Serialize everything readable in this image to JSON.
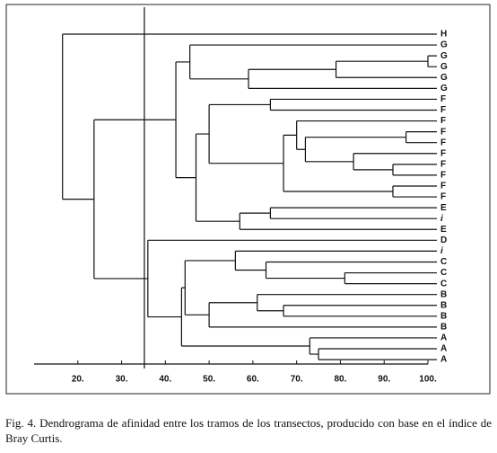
{
  "chart_data": {
    "type": "dendrogram",
    "leaves": [
      "H",
      "G",
      "G",
      "G",
      "G",
      "G",
      "F",
      "F",
      "F",
      "F",
      "F",
      "F",
      "F",
      "F",
      "F",
      "F",
      "E",
      "i",
      "E",
      "D",
      "i",
      "C",
      "C",
      "C",
      "B",
      "B",
      "B",
      "B",
      "A",
      "A",
      "A"
    ],
    "merges": [
      {
        "children": [
          2,
          3
        ],
        "height": 100
      },
      {
        "children": [
          31,
          4
        ],
        "height": 79
      },
      {
        "children": [
          32,
          5
        ],
        "height": 59
      },
      {
        "children": [
          1,
          33
        ],
        "height": 45.6
      },
      {
        "children": [
          6,
          7
        ],
        "height": 64
      },
      {
        "children": [
          9,
          10
        ],
        "height": 95
      },
      {
        "children": [
          12,
          13
        ],
        "height": 92
      },
      {
        "children": [
          11,
          37
        ],
        "height": 83
      },
      {
        "children": [
          36,
          38
        ],
        "height": 72
      },
      {
        "children": [
          8,
          39
        ],
        "height": 70
      },
      {
        "children": [
          14,
          15
        ],
        "height": 92
      },
      {
        "children": [
          40,
          41
        ],
        "height": 67
      },
      {
        "children": [
          35,
          42
        ],
        "height": 50
      },
      {
        "children": [
          16,
          17
        ],
        "height": 64
      },
      {
        "children": [
          44,
          18
        ],
        "height": 57
      },
      {
        "children": [
          43,
          45
        ],
        "height": 47
      },
      {
        "children": [
          34,
          46
        ],
        "height": 42.4
      },
      {
        "children": [
          22,
          23
        ],
        "height": 81
      },
      {
        "children": [
          21,
          48
        ],
        "height": 63
      },
      {
        "children": [
          20,
          49
        ],
        "height": 56
      },
      {
        "children": [
          25,
          26
        ],
        "height": 67
      },
      {
        "children": [
          24,
          51
        ],
        "height": 61
      },
      {
        "children": [
          52,
          27
        ],
        "height": 50
      },
      {
        "children": [
          50,
          53
        ],
        "height": 44.5
      },
      {
        "children": [
          29,
          30
        ],
        "height": 75
      },
      {
        "children": [
          28,
          55
        ],
        "height": 73
      },
      {
        "children": [
          54,
          56
        ],
        "height": 43.7
      },
      {
        "children": [
          19,
          57
        ],
        "height": 36
      },
      {
        "children": [
          47,
          58
        ],
        "height": 23.7
      },
      {
        "children": [
          0,
          59
        ],
        "height": 16.5
      }
    ],
    "cut": 35.2,
    "xlim": [
      10,
      100
    ],
    "xticks": [
      {
        "value": 20,
        "label": "20."
      },
      {
        "value": 30,
        "label": "30."
      },
      {
        "value": 40,
        "label": "40."
      },
      {
        "value": 50,
        "label": "50."
      },
      {
        "value": 60,
        "label": "60."
      },
      {
        "value": 70,
        "label": "70."
      },
      {
        "value": 80,
        "label": "80."
      },
      {
        "value": 90,
        "label": "90."
      },
      {
        "value": 100,
        "label": "100."
      }
    ],
    "caption": "Fig. 4. Dendrograma de afinidad entre los tramos de los transectos, producido con base en el índice de Bray Curtis."
  }
}
